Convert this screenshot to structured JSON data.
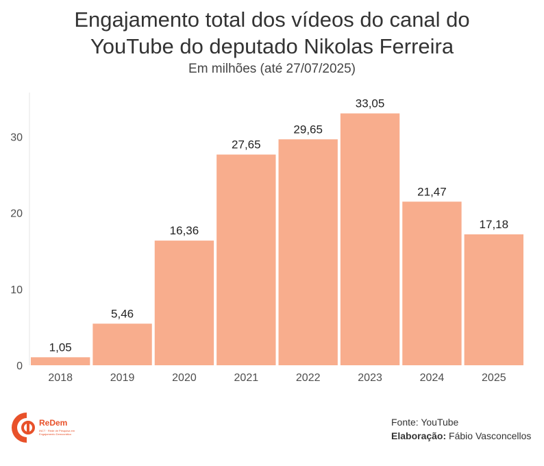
{
  "title_line1": "Engajamento total dos vídeos do canal do",
  "title_line2": "YouTube do deputado Nikolas Ferreira",
  "subtitle": "Em milhões (até 27/07/2025)",
  "source_label": "Fonte: YouTube",
  "credit_prefix": "Elaboração:",
  "credit_name": "Fábio Vasconcellos",
  "logo_text": "ReDem",
  "logo_tagline": "INCT · Rede de Pesquisa em Engajamento Democrático",
  "colors": {
    "bar": "#f8ad8d",
    "logo": "#e8512a",
    "axis": "#e6e6e6"
  },
  "chart_data": {
    "type": "bar",
    "categories": [
      "2018",
      "2019",
      "2020",
      "2021",
      "2022",
      "2023",
      "2024",
      "2025"
    ],
    "values": [
      1.05,
      5.46,
      16.36,
      27.65,
      29.65,
      33.05,
      21.47,
      17.18
    ],
    "value_labels": [
      "1,05",
      "5,46",
      "16,36",
      "27,65",
      "29,65",
      "33,05",
      "21,47",
      "17,18"
    ],
    "yticks": [
      0,
      10,
      20,
      30
    ],
    "ylim": [
      0,
      36
    ],
    "grid": false
  }
}
